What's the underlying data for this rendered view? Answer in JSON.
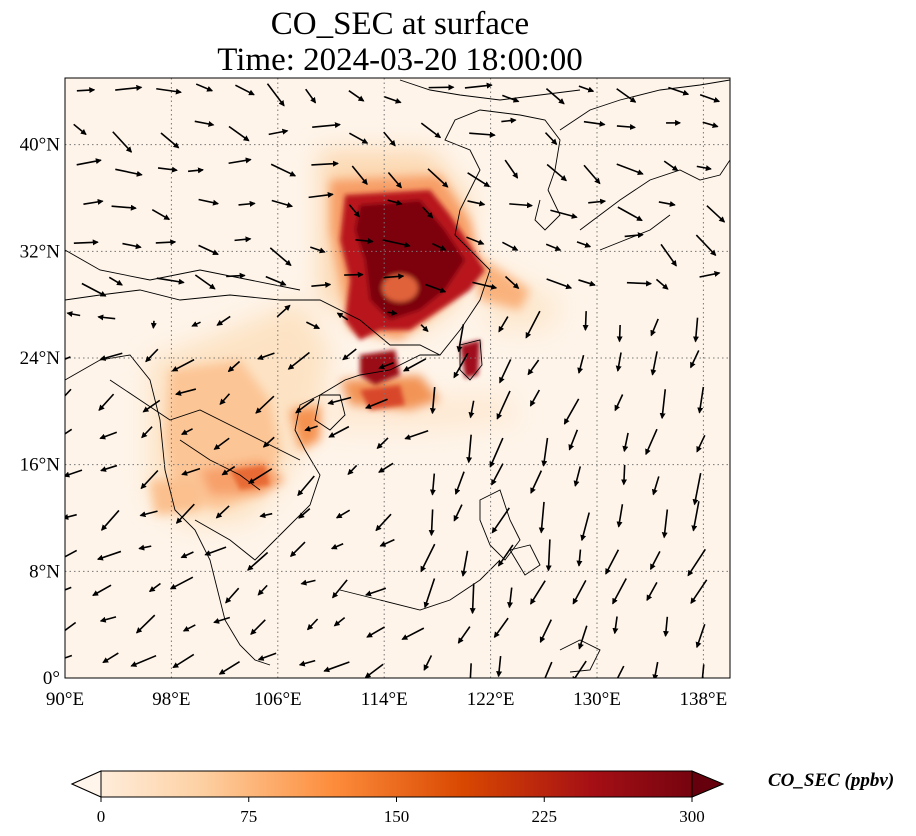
{
  "title": {
    "line1": "CO_SEC at surface",
    "line2": "Time: 2024-03-20 18:00:00"
  },
  "map": {
    "lon_range": [
      90,
      140
    ],
    "lat_range": [
      0,
      45
    ],
    "lon_ticks": [
      {
        "value": 90,
        "label": "90°E"
      },
      {
        "value": 98,
        "label": "98°E"
      },
      {
        "value": 106,
        "label": "106°E"
      },
      {
        "value": 114,
        "label": "114°E"
      },
      {
        "value": 122,
        "label": "122°E"
      },
      {
        "value": 130,
        "label": "130°E"
      },
      {
        "value": 138,
        "label": "138°E"
      }
    ],
    "lat_ticks": [
      {
        "value": 0,
        "label": "0°"
      },
      {
        "value": 8,
        "label": "8°N"
      },
      {
        "value": 16,
        "label": "16°N"
      },
      {
        "value": 24,
        "label": "24°N"
      },
      {
        "value": 32,
        "label": "32°N"
      },
      {
        "value": 40,
        "label": "40°N"
      }
    ],
    "gridlines": "dotted"
  },
  "colorbar": {
    "label": "CO_SEC (ppbv)",
    "min": 0,
    "max": 300,
    "ticks": [
      {
        "value": 0,
        "label": "0"
      },
      {
        "value": 75,
        "label": "75"
      },
      {
        "value": 150,
        "label": "150"
      },
      {
        "value": 225,
        "label": "225"
      },
      {
        "value": 300,
        "label": "300"
      }
    ],
    "colors": [
      "#fff5eb",
      "#fdd0a2",
      "#fd8d3c",
      "#d94801",
      "#a50f15",
      "#67000d"
    ],
    "extend": "both"
  }
}
